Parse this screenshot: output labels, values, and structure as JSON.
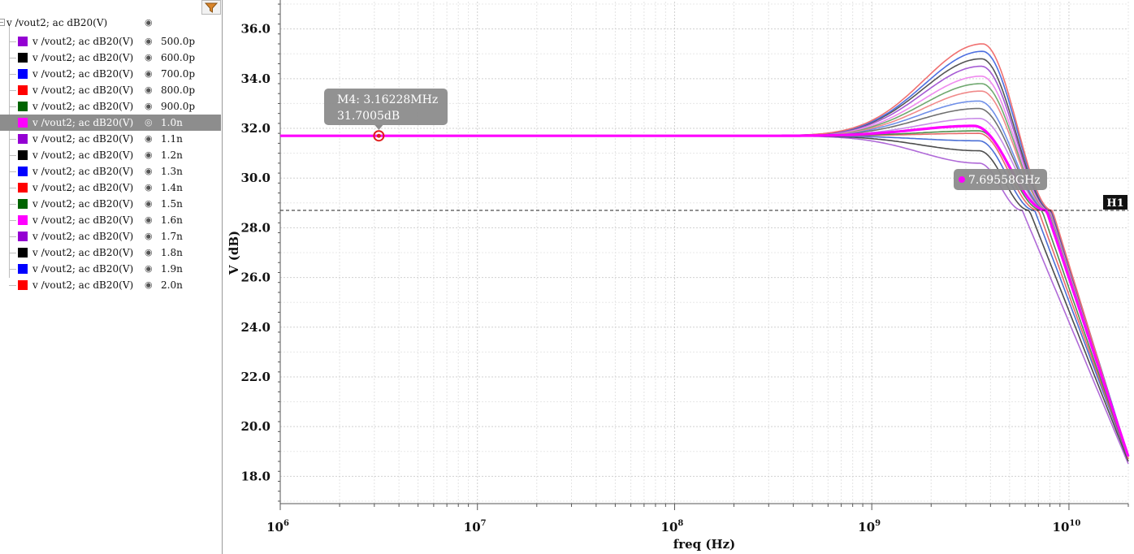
{
  "sidebar": {
    "parent": {
      "label": "v /vout2; ac dB20(V)"
    },
    "items": [
      {
        "label": "v /vout2; ac dB20(V)",
        "value": "500.0p",
        "color": "#9400d3"
      },
      {
        "label": "v /vout2; ac dB20(V)",
        "value": "600.0p",
        "color": "#000000"
      },
      {
        "label": "v /vout2; ac dB20(V)",
        "value": "700.0p",
        "color": "#0000ff"
      },
      {
        "label": "v /vout2; ac dB20(V)",
        "value": "800.0p",
        "color": "#ff0000"
      },
      {
        "label": "v /vout2; ac dB20(V)",
        "value": "900.0p",
        "color": "#006400"
      },
      {
        "label": "v /vout2; ac dB20(V)",
        "value": "1.0n",
        "color": "#ff00ff",
        "selected": true
      },
      {
        "label": "v /vout2; ac dB20(V)",
        "value": "1.1n",
        "color": "#9400d3"
      },
      {
        "label": "v /vout2; ac dB20(V)",
        "value": "1.2n",
        "color": "#000000"
      },
      {
        "label": "v /vout2; ac dB20(V)",
        "value": "1.3n",
        "color": "#0000ff"
      },
      {
        "label": "v /vout2; ac dB20(V)",
        "value": "1.4n",
        "color": "#ff0000"
      },
      {
        "label": "v /vout2; ac dB20(V)",
        "value": "1.5n",
        "color": "#006400"
      },
      {
        "label": "v /vout2; ac dB20(V)",
        "value": "1.6n",
        "color": "#ff00ff"
      },
      {
        "label": "v /vout2; ac dB20(V)",
        "value": "1.7n",
        "color": "#9400d3"
      },
      {
        "label": "v /vout2; ac dB20(V)",
        "value": "1.8n",
        "color": "#000000"
      },
      {
        "label": "v /vout2; ac dB20(V)",
        "value": "1.9n",
        "color": "#0000ff"
      },
      {
        "label": "v /vout2; ac dB20(V)",
        "value": "2.0n",
        "color": "#ff0000"
      }
    ]
  },
  "chart_data": {
    "type": "line",
    "xlabel": "freq (Hz)",
    "ylabel": "V (dB)",
    "xscale": "log",
    "xlim": [
      1000000,
      20000000000
    ],
    "ylim": [
      16.9,
      37.1
    ],
    "yticks": [
      "18.0",
      "20.0",
      "22.0",
      "24.0",
      "26.0",
      "28.0",
      "30.0",
      "32.0",
      "34.0",
      "36.0"
    ],
    "xticks": [
      {
        "base": "10",
        "exp": "6"
      },
      {
        "base": "10",
        "exp": "7"
      },
      {
        "base": "10",
        "exp": "8"
      },
      {
        "base": "10",
        "exp": "9"
      },
      {
        "base": "10",
        "exp": "10"
      }
    ],
    "grid": true,
    "dc_gain_db": 31.7,
    "series": [
      {
        "name": "500.0p",
        "color": "#b06ad8",
        "peak_freq_hz": 3500000000,
        "peak_db": 30.6,
        "f_at_28_7_hz": 5800000000,
        "db_at_20ghz": 18.5
      },
      {
        "name": "600.0p",
        "color": "#4d4d4d",
        "peak_freq_hz": 3500000000,
        "peak_db": 31.1,
        "f_at_28_7_hz": 6300000000,
        "db_at_20ghz": 18.6
      },
      {
        "name": "700.0p",
        "color": "#4b6fd6",
        "peak_freq_hz": 3500000000,
        "peak_db": 31.5,
        "f_at_28_7_hz": 6700000000,
        "db_at_20ghz": 18.7
      },
      {
        "name": "800.0p",
        "color": "#e86a6a",
        "peak_freq_hz": 3500000000,
        "peak_db": 31.8,
        "f_at_28_7_hz": 7000000000,
        "db_at_20ghz": 18.7
      },
      {
        "name": "900.0p",
        "color": "#4f8f4f",
        "peak_freq_hz": 3500000000,
        "peak_db": 31.9,
        "f_at_28_7_hz": 7300000000,
        "db_at_20ghz": 18.7
      },
      {
        "name": "1.0n",
        "color": "#ff00ff",
        "peak_freq_hz": 3300000000,
        "peak_db": 32.1,
        "f_at_28_7_hz": 7695580000,
        "db_at_20ghz": 18.8,
        "highlight": true
      },
      {
        "name": "1.1n",
        "color": "#c98ce8",
        "peak_freq_hz": 3500000000,
        "peak_db": 32.4,
        "f_at_28_7_hz": 7800000000,
        "db_at_20ghz": 18.8
      },
      {
        "name": "1.2n",
        "color": "#707070",
        "peak_freq_hz": 3500000000,
        "peak_db": 32.8,
        "f_at_28_7_hz": 7850000000,
        "db_at_20ghz": 18.8
      },
      {
        "name": "1.3n",
        "color": "#6f8fe8",
        "peak_freq_hz": 3500000000,
        "peak_db": 33.1,
        "f_at_28_7_hz": 7900000000,
        "db_at_20ghz": 18.8
      },
      {
        "name": "1.4n",
        "color": "#f08a8a",
        "peak_freq_hz": 3600000000,
        "peak_db": 33.5,
        "f_at_28_7_hz": 7950000000,
        "db_at_20ghz": 18.8
      },
      {
        "name": "1.5n",
        "color": "#6fa86f",
        "peak_freq_hz": 3600000000,
        "peak_db": 33.8,
        "f_at_28_7_hz": 8000000000,
        "db_at_20ghz": 18.8
      },
      {
        "name": "1.6n",
        "color": "#ef8aef",
        "peak_freq_hz": 3600000000,
        "peak_db": 34.1,
        "f_at_28_7_hz": 8050000000,
        "db_at_20ghz": 18.8
      },
      {
        "name": "1.7n",
        "color": "#a65ad4",
        "peak_freq_hz": 3600000000,
        "peak_db": 34.5,
        "f_at_28_7_hz": 8100000000,
        "db_at_20ghz": 18.8
      },
      {
        "name": "1.8n",
        "color": "#555555",
        "peak_freq_hz": 3600000000,
        "peak_db": 34.8,
        "f_at_28_7_hz": 8150000000,
        "db_at_20ghz": 18.8
      },
      {
        "name": "1.9n",
        "color": "#4d6fe0",
        "peak_freq_hz": 3650000000,
        "peak_db": 35.1,
        "f_at_28_7_hz": 8200000000,
        "db_at_20ghz": 18.8
      },
      {
        "name": "2.0n",
        "color": "#f07070",
        "peak_freq_hz": 3650000000,
        "peak_db": 35.4,
        "f_at_28_7_hz": 8250000000,
        "db_at_20ghz": 18.7
      }
    ],
    "hline": {
      "label": "H1",
      "y": 28.7
    },
    "markers": [
      {
        "id": "M4",
        "x": 3162280,
        "y": 31.7005,
        "line1": "M4: 3.16228MHz",
        "line2": "31.7005dB"
      },
      {
        "x": 7695580000,
        "y": 28.7,
        "text": "7.69558GHz"
      }
    ]
  }
}
